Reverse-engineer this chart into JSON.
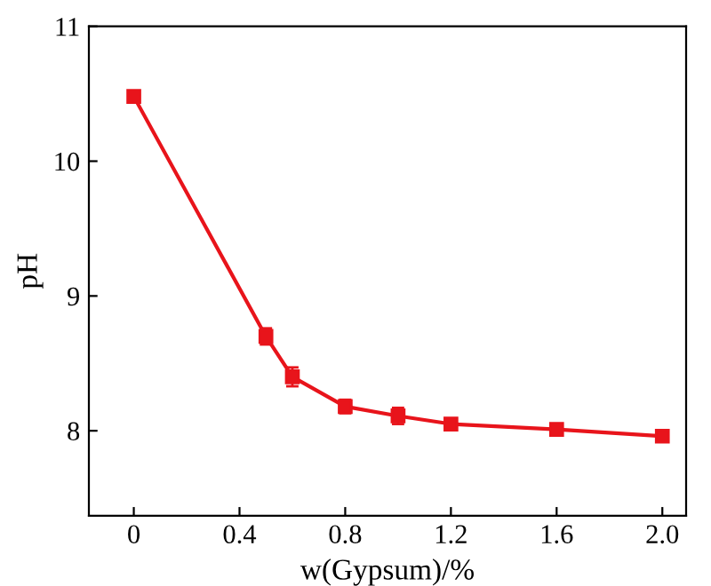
{
  "chart_data": {
    "type": "line",
    "xlabel": "w(Gypsum)/%",
    "ylabel": "pH",
    "x": [
      0,
      0.5,
      0.6,
      0.8,
      1.0,
      1.2,
      1.6,
      2.0
    ],
    "series": [
      {
        "color": "#e8141b",
        "values": [
          10.48,
          8.7,
          8.4,
          8.18,
          8.11,
          8.05,
          8.01,
          7.96
        ],
        "errors": [
          0.03,
          0.06,
          0.07,
          0.05,
          0.06,
          0.04,
          0.03,
          0.03
        ]
      }
    ],
    "xlim": [
      -0.17,
      2.09
    ],
    "ylim": [
      7.37,
      11
    ],
    "xticks": [
      0,
      0.4,
      0.8,
      1.2,
      1.6,
      {
        "value": 2.0,
        "label": "2.0"
      }
    ],
    "yticks": [
      8,
      9,
      10,
      11
    ],
    "marker": "square",
    "line_style": "solid",
    "grid": false,
    "legend": false
  }
}
